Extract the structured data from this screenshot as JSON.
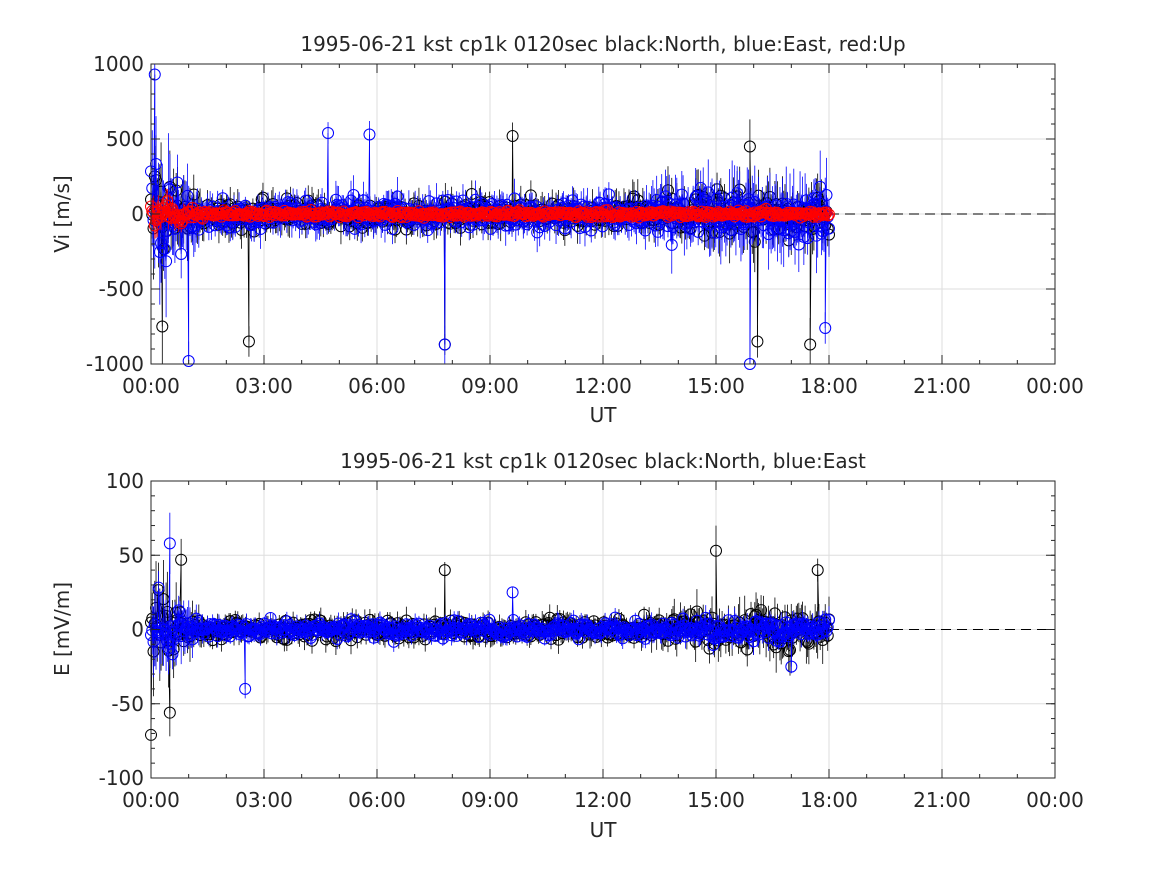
{
  "chart_data": [
    {
      "type": "scatter",
      "title": "1995-06-21 kst cp1k 0120sec black:North, blue:East, red:Up",
      "xlabel": "UT",
      "ylabel": "Vi [m/s]",
      "xlim": [
        0,
        24
      ],
      "ylim": [
        -1000,
        1000
      ],
      "grid": true,
      "x_ticks": [
        "00:00",
        "03:00",
        "06:00",
        "09:00",
        "12:00",
        "15:00",
        "18:00",
        "21:00",
        "00:00"
      ],
      "y_ticks": [
        "1000",
        "500",
        "0",
        "-500",
        "-1000"
      ],
      "y_tick_values": [
        1000,
        500,
        0,
        -500,
        -1000
      ],
      "x_range_data_hours": [
        0,
        18
      ],
      "zero_line": "dashed black after 18:00",
      "series": [
        {
          "name": "North",
          "color": "#000000",
          "amplitude_start": 500,
          "amplitude_mid": 160,
          "amplitude_end": 260,
          "outliers": [
            [
              0.3,
              -750
            ],
            [
              2.6,
              -850
            ],
            [
              7.8,
              -870
            ],
            [
              9.6,
              520
            ],
            [
              15.9,
              450
            ],
            [
              16.1,
              -850
            ],
            [
              17.5,
              -870
            ]
          ]
        },
        {
          "name": "East",
          "color": "#0000ff",
          "amplitude_start": 600,
          "amplitude_mid": 170,
          "amplitude_end": 320,
          "outliers": [
            [
              0.1,
              930
            ],
            [
              1.0,
              -980
            ],
            [
              4.7,
              540
            ],
            [
              5.8,
              530
            ],
            [
              7.8,
              -870
            ],
            [
              15.9,
              -1000
            ],
            [
              17.9,
              -760
            ]
          ]
        },
        {
          "name": "Up",
          "color": "#ff0000",
          "amplitude_start": 180,
          "amplitude_mid": 40,
          "amplitude_end": 40,
          "outliers": []
        }
      ]
    },
    {
      "type": "scatter",
      "title": "1995-06-21 kst cp1k 0120sec black:North, blue:East",
      "xlabel": "UT",
      "ylabel": "E [mV/m]",
      "xlim": [
        0,
        24
      ],
      "ylim": [
        -100,
        100
      ],
      "grid": true,
      "x_ticks": [
        "00:00",
        "03:00",
        "06:00",
        "09:00",
        "12:00",
        "15:00",
        "18:00",
        "21:00",
        "00:00"
      ],
      "y_ticks": [
        "100",
        "50",
        "0",
        "-50",
        "-100"
      ],
      "y_tick_values": [
        100,
        50,
        0,
        -50,
        -100
      ],
      "x_range_data_hours": [
        0,
        18
      ],
      "zero_line": "dashed black after 18:00",
      "series": [
        {
          "name": "North",
          "color": "#000000",
          "amplitude_start": 45,
          "amplitude_mid": 12,
          "amplitude_end": 22,
          "outliers": [
            [
              0.0,
              -71
            ],
            [
              0.5,
              -56
            ],
            [
              0.8,
              47
            ],
            [
              7.8,
              40
            ],
            [
              15.0,
              53
            ],
            [
              17.7,
              40
            ]
          ]
        },
        {
          "name": "East",
          "color": "#0000ff",
          "amplitude_start": 40,
          "amplitude_mid": 10,
          "amplitude_end": 12,
          "outliers": [
            [
              0.5,
              58
            ],
            [
              2.5,
              -40
            ],
            [
              9.6,
              25
            ],
            [
              17.0,
              -25
            ]
          ]
        }
      ]
    }
  ]
}
